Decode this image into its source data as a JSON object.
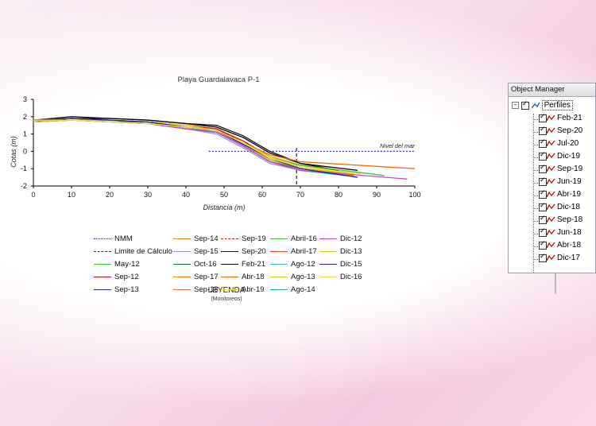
{
  "chart_data": {
    "type": "line",
    "title": "Playa Guardalavaca P-1",
    "xlabel": "Distancia (m)",
    "ylabel": "Cotas (m)",
    "xlim": [
      0,
      100
    ],
    "ylim": [
      -2,
      3
    ],
    "xticks": [
      "0",
      "10",
      "20",
      "30",
      "40",
      "50",
      "60",
      "70",
      "80",
      "90",
      "100"
    ],
    "yticks": [
      "-2",
      "-1",
      "0",
      "1",
      "2",
      "3"
    ],
    "annotation": "Nivel del mar",
    "legend_title": "LEYENDA",
    "legend_subtitle": "(Monitoreos)",
    "series": [
      {
        "name": "NMM",
        "color": "#2a2ad6",
        "style": "dotted",
        "x": [
          46,
          100
        ],
        "y": [
          0,
          0
        ]
      },
      {
        "name": "Limite de Cálculo",
        "color": "#333333",
        "style": "dashed",
        "x": [
          69,
          69
        ],
        "y": [
          0.2,
          -2
        ]
      },
      {
        "name": "May-12",
        "color": "#33cc33",
        "style": "solid",
        "x": [
          0,
          10,
          20,
          30,
          40,
          48,
          55,
          62,
          70,
          78
        ],
        "y": [
          1.7,
          1.8,
          1.8,
          1.7,
          1.5,
          1.3,
          0.5,
          -0.5,
          -1.0,
          -1.2
        ]
      },
      {
        "name": "Sep-12",
        "color": "#e01010",
        "style": "solid",
        "x": [
          0,
          10,
          20,
          30,
          40,
          48,
          55,
          62,
          70,
          80
        ],
        "y": [
          1.8,
          1.9,
          1.8,
          1.7,
          1.5,
          1.3,
          0.6,
          -0.3,
          -0.8,
          -1.1
        ]
      },
      {
        "name": "Sep-13",
        "color": "#1a2ac0",
        "style": "solid",
        "x": [
          0,
          10,
          20,
          30,
          40,
          48,
          55,
          62,
          70,
          82
        ],
        "y": [
          1.7,
          1.8,
          1.7,
          1.6,
          1.3,
          1.1,
          0.3,
          -0.6,
          -1.0,
          -1.3
        ]
      },
      {
        "name": "Sep-14",
        "color": "#f08020",
        "style": "solid",
        "x": [
          0,
          10,
          20,
          30,
          40,
          48,
          55,
          62,
          70,
          82
        ],
        "y": [
          1.8,
          1.9,
          1.8,
          1.7,
          1.4,
          1.2,
          0.4,
          -0.4,
          -0.9,
          -1.2
        ]
      },
      {
        "name": "Sep-15",
        "color": "#a090e0",
        "style": "solid",
        "x": [
          0,
          10,
          20,
          30,
          40,
          48,
          55,
          62,
          70,
          84
        ],
        "y": [
          1.7,
          1.8,
          1.8,
          1.7,
          1.3,
          1.0,
          0.2,
          -0.7,
          -1.1,
          -1.4
        ]
      },
      {
        "name": "Oct-16",
        "color": "#127a20",
        "style": "solid",
        "x": [
          0,
          10,
          20,
          30,
          40,
          48,
          55,
          62,
          70,
          80
        ],
        "y": [
          1.8,
          1.9,
          1.8,
          1.6,
          1.4,
          1.2,
          0.4,
          -0.5,
          -1.0,
          -1.3
        ]
      },
      {
        "name": "Sep-17",
        "color": "#ff8000",
        "style": "solid",
        "x": [
          0,
          10,
          20,
          30,
          40,
          48,
          55,
          62,
          70,
          80
        ],
        "y": [
          1.8,
          1.8,
          1.7,
          1.6,
          1.4,
          1.2,
          0.5,
          -0.3,
          -0.8,
          -1.1
        ]
      },
      {
        "name": "Sep-18",
        "color": "#f07050",
        "style": "solid",
        "x": [
          0,
          10,
          20,
          30,
          40,
          48,
          55,
          62,
          70,
          84
        ],
        "y": [
          1.7,
          1.8,
          1.7,
          1.6,
          1.3,
          1.1,
          0.3,
          -0.6,
          -1.1,
          -1.4
        ]
      },
      {
        "name": "Sep-19",
        "color": "#e81818",
        "style": "dashed",
        "x": [
          0,
          10,
          20,
          30,
          40,
          48,
          55,
          62,
          70,
          82
        ],
        "y": [
          1.8,
          1.9,
          1.8,
          1.7,
          1.5,
          1.3,
          0.5,
          -0.4,
          -0.9,
          -1.2
        ]
      },
      {
        "name": "Sep-20",
        "color": "#111111",
        "style": "solid",
        "x": [
          0,
          10,
          20,
          30,
          40,
          48,
          55,
          62,
          70,
          80
        ],
        "y": [
          1.8,
          2.0,
          1.9,
          1.8,
          1.6,
          1.5,
          0.9,
          0.0,
          -0.7,
          -1.1
        ]
      },
      {
        "name": "Feb-21",
        "color": "#000000",
        "style": "solid",
        "x": [
          0,
          10,
          20,
          30,
          40,
          48,
          55,
          62,
          70,
          85
        ],
        "y": [
          1.7,
          1.9,
          1.9,
          1.8,
          1.6,
          1.4,
          0.8,
          -0.1,
          -0.7,
          -1.1
        ]
      },
      {
        "name": "Abr-18",
        "color": "#ff6a00",
        "style": "solid",
        "x": [
          0,
          10,
          20,
          30,
          40,
          48,
          55,
          62,
          70,
          100
        ],
        "y": [
          1.8,
          1.9,
          1.8,
          1.7,
          1.4,
          1.2,
          0.5,
          -0.2,
          -0.6,
          -1.0
        ]
      },
      {
        "name": "Abr-19",
        "color": "#f2e020",
        "style": "solid",
        "x": [
          0,
          10,
          20,
          30,
          40,
          48,
          55,
          62,
          70,
          82
        ],
        "y": [
          1.8,
          1.9,
          1.8,
          1.7,
          1.5,
          1.2,
          0.4,
          -0.4,
          -0.9,
          -1.2
        ]
      },
      {
        "name": "Abril-16",
        "color": "#40c040",
        "style": "solid",
        "x": [
          0,
          10,
          20,
          30,
          40,
          48,
          55,
          62,
          70,
          92
        ],
        "y": [
          1.8,
          1.8,
          1.7,
          1.6,
          1.4,
          1.2,
          0.4,
          -0.4,
          -0.8,
          -1.4
        ]
      },
      {
        "name": "Abril-17",
        "color": "#ff4020",
        "style": "solid",
        "x": [
          0,
          10,
          20,
          30,
          40,
          48,
          55,
          62,
          70,
          84
        ],
        "y": [
          1.7,
          1.8,
          1.8,
          1.7,
          1.4,
          1.2,
          0.4,
          -0.5,
          -1.0,
          -1.3
        ]
      },
      {
        "name": "Ago-12",
        "color": "#40c8c8",
        "style": "solid",
        "x": [
          0,
          10,
          20,
          30,
          40,
          48,
          55,
          62,
          70,
          82
        ],
        "y": [
          1.8,
          1.8,
          1.7,
          1.6,
          1.3,
          1.1,
          0.3,
          -0.6,
          -1.1,
          -1.4
        ]
      },
      {
        "name": "Ago-13",
        "color": "#c8d020",
        "style": "solid",
        "x": [
          0,
          10,
          20,
          30,
          40,
          48,
          55,
          62,
          70,
          80
        ],
        "y": [
          1.7,
          1.8,
          1.8,
          1.7,
          1.4,
          1.2,
          0.5,
          -0.3,
          -0.9,
          -1.2
        ]
      },
      {
        "name": "Ago-14",
        "color": "#20b0a0",
        "style": "solid",
        "x": [
          0,
          10,
          20,
          30,
          40,
          48,
          55,
          62,
          70,
          82
        ],
        "y": [
          1.8,
          1.9,
          1.8,
          1.7,
          1.4,
          1.1,
          0.3,
          -0.6,
          -1.1,
          -1.4
        ]
      },
      {
        "name": "Dic-12",
        "color": "#d040d0",
        "style": "solid",
        "x": [
          0,
          10,
          20,
          30,
          40,
          48,
          55,
          62,
          70,
          98
        ],
        "y": [
          1.8,
          1.8,
          1.7,
          1.6,
          1.3,
          1.1,
          0.3,
          -0.6,
          -1.1,
          -1.6
        ]
      },
      {
        "name": "Dic-13",
        "color": "#e8c020",
        "style": "solid",
        "x": [
          0,
          10,
          20,
          30,
          40,
          48,
          55,
          62,
          70,
          84
        ],
        "y": [
          1.7,
          1.8,
          1.8,
          1.7,
          1.4,
          1.2,
          0.4,
          -0.5,
          -1.0,
          -1.3
        ]
      },
      {
        "name": "Dic-15",
        "color": "#2020a0",
        "style": "solid",
        "x": [
          0,
          10,
          20,
          30,
          40,
          48,
          55,
          62,
          70,
          85
        ],
        "y": [
          1.8,
          1.9,
          1.8,
          1.7,
          1.4,
          1.2,
          0.4,
          -0.4,
          -1.0,
          -1.5
        ]
      },
      {
        "name": "Dic-16",
        "color": "#f0e040",
        "style": "solid",
        "x": [
          0,
          10,
          20,
          30,
          40,
          48,
          55,
          62,
          70,
          86
        ],
        "y": [
          1.8,
          1.8,
          1.7,
          1.6,
          1.4,
          1.2,
          0.5,
          -0.4,
          -0.9,
          -1.3
        ]
      }
    ]
  },
  "legend_rows": [
    [
      "NMM",
      "Sep-14",
      "Sep-19",
      "Abril-16",
      "Dic-12"
    ],
    [
      "Limite de Cálculo",
      "Sep-15",
      "Sep-20",
      "Abril-17",
      "Dic-13"
    ],
    [
      "May-12",
      "Oct-16",
      "Feb-21",
      "Ago-12",
      "Dic-15"
    ],
    [
      "Sep-12",
      "Sep-17",
      "Abr-18",
      "Ago-13",
      "Dic-16"
    ],
    [
      "Sep-13",
      "Sep-18",
      "Abr-19",
      "Ago-14",
      ""
    ]
  ],
  "object_manager": {
    "title": "Object Manager",
    "root_label": "Perfiles",
    "items": [
      "Feb-21",
      "Sep-20",
      "Jul-20",
      "Dic-19",
      "Sep-19",
      "Jun-19",
      "Abr-19",
      "Dic-18",
      "Sep-18",
      "Jun-18",
      "Abr-18",
      "Dic-17"
    ]
  }
}
